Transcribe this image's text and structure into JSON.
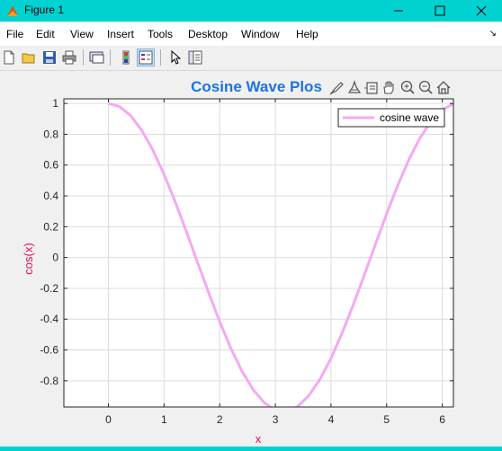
{
  "window": {
    "title": "Figure 1",
    "colors": {
      "frame": "#00d2d2"
    }
  },
  "menu": {
    "items": [
      "File",
      "Edit",
      "View",
      "Insert",
      "Tools",
      "Desktop",
      "Window",
      "Help"
    ]
  },
  "toolbar": {
    "icons": [
      "new-figure-icon",
      "open-file-icon",
      "save-icon",
      "print-icon",
      "link-plot-icon",
      "colorbar-icon",
      "legend-icon",
      "select-arrow-icon",
      "property-inspector-icon"
    ]
  },
  "axes_toolbar": {
    "icons": [
      "brush-icon",
      "data-tip-icon",
      "rotate-icon",
      "pan-icon",
      "zoom-in-icon",
      "zoom-out-icon",
      "home-icon"
    ]
  },
  "chart_data": {
    "type": "line",
    "title": "Cosine Wave Plos",
    "xlabel": "x",
    "ylabel": "cos(x)",
    "xlim": [
      -0.8,
      6.2
    ],
    "ylim": [
      -0.97,
      1.03
    ],
    "xticks": [
      0,
      1,
      2,
      3,
      4,
      5,
      6
    ],
    "yticks": [
      -0.8,
      -0.6,
      -0.4,
      -0.2,
      0,
      0.2,
      0.4,
      0.6,
      0.8,
      1
    ],
    "xtick_labels": [
      "0",
      "1",
      "2",
      "3",
      "4",
      "5",
      "6"
    ],
    "ytick_labels": [
      "-0.8",
      "-0.6",
      "-0.4",
      "-0.2",
      "0",
      "0.2",
      "0.4",
      "0.6",
      "0.8",
      "1"
    ],
    "grid": true,
    "legend": {
      "location": "top-right"
    },
    "series": [
      {
        "name": "cosine wave",
        "color": "#f5a8f5",
        "x": [
          0,
          0.2,
          0.4,
          0.6,
          0.8,
          1.0,
          1.2,
          1.4,
          1.6,
          1.8,
          2.0,
          2.2,
          2.4,
          2.6,
          2.8,
          3.0,
          3.1416,
          3.2,
          3.4,
          3.6,
          3.8,
          4.0,
          4.2,
          4.4,
          4.6,
          4.8,
          5.0,
          5.2,
          5.4,
          5.6,
          5.8,
          6.0,
          6.2
        ],
        "y": [
          1.0,
          0.98,
          0.921,
          0.825,
          0.697,
          0.54,
          0.362,
          0.17,
          -0.029,
          -0.227,
          -0.416,
          -0.589,
          -0.737,
          -0.857,
          -0.942,
          -0.99,
          -1.0,
          -0.998,
          -0.967,
          -0.897,
          -0.791,
          -0.654,
          -0.49,
          -0.307,
          -0.112,
          0.087,
          0.284,
          0.469,
          0.635,
          0.776,
          0.886,
          0.96,
          0.997
        ]
      }
    ],
    "colors": {
      "title": "#1a73e8",
      "labels": "#e0105a",
      "ticks": "#262626",
      "grid": "#dcdcdc"
    }
  }
}
